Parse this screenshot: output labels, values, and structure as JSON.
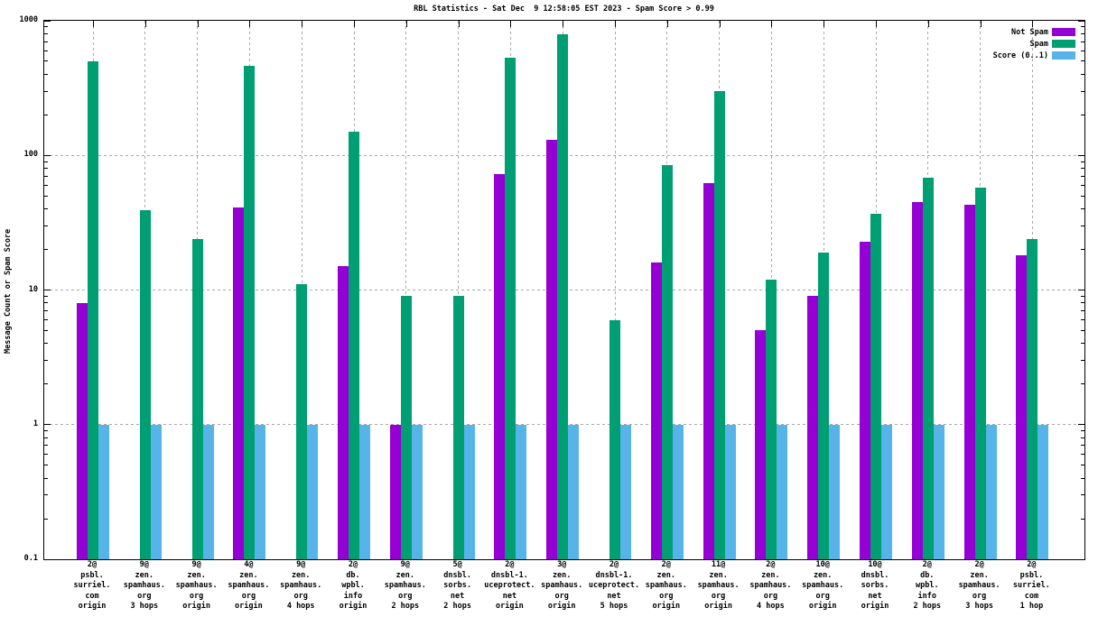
{
  "title": "RBL Statistics - Sat Dec  9 12:58:05 EST 2023 - Spam Score > 0.99",
  "ylabel": "Message Count or Spam Score",
  "colors": {
    "not_spam": "#9400D3",
    "spam": "#009E73",
    "score": "#56B4E9",
    "grid": "#A9A9A9",
    "axis": "#000000",
    "background": "#FFFFFF"
  },
  "chart_data": {
    "type": "bar",
    "title": "RBL Statistics - Sat Dec  9 12:58:05 EST 2023 - Spam Score > 0.99",
    "xlabel": "",
    "ylabel": "Message Count or Spam Score",
    "yscale": "log",
    "ylim": [
      0.1,
      1000
    ],
    "ytick_values": [
      1000,
      100,
      10,
      1,
      0.1
    ],
    "ytick_labels": [
      "1000",
      "100",
      "10",
      "1",
      "0.1"
    ],
    "grid_y_values": [
      100,
      10,
      1
    ],
    "grid_x": "every-category",
    "legend_position": "top-right-inside",
    "legend_entries": [
      "Not Spam",
      "Spam",
      "Score (0..1)"
    ],
    "categories": [
      [
        "2@",
        "psbl.",
        "surriel.",
        "com",
        "origin"
      ],
      [
        "9@",
        "zen.",
        "spamhaus.",
        "org",
        "3 hops"
      ],
      [
        "9@",
        "zen.",
        "spamhaus.",
        "org",
        "origin"
      ],
      [
        "4@",
        "zen.",
        "spamhaus.",
        "org",
        "origin"
      ],
      [
        "9@",
        "zen.",
        "spamhaus.",
        "org",
        "4 hops"
      ],
      [
        "2@",
        "db.",
        "wpbl.",
        "info",
        "origin"
      ],
      [
        "9@",
        "zen.",
        "spamhaus.",
        "org",
        "2 hops"
      ],
      [
        "5@",
        "dnsbl.",
        "sorbs.",
        "net",
        "2 hops"
      ],
      [
        "2@",
        "dnsbl-1.",
        "uceprotect.",
        "net",
        "origin"
      ],
      [
        "3@",
        "zen.",
        "spamhaus.",
        "org",
        "origin"
      ],
      [
        "2@",
        "dnsbl-1.",
        "uceprotect.",
        "net",
        "5 hops"
      ],
      [
        "2@",
        "zen.",
        "spamhaus.",
        "org",
        "origin"
      ],
      [
        "11@",
        "zen.",
        "spamhaus.",
        "org",
        "origin"
      ],
      [
        "2@",
        "zen.",
        "spamhaus.",
        "org",
        "4 hops"
      ],
      [
        "10@",
        "zen.",
        "spamhaus.",
        "org",
        "origin"
      ],
      [
        "10@",
        "dnsbl.",
        "sorbs.",
        "net",
        "origin"
      ],
      [
        "2@",
        "db.",
        "wpbl.",
        "info",
        "2 hops"
      ],
      [
        "2@",
        "zen.",
        "spamhaus.",
        "org",
        "3 hops"
      ],
      [
        "2@",
        "psbl.",
        "surriel.",
        "com",
        "1 hop"
      ]
    ],
    "series": [
      {
        "name": "Not Spam",
        "color_key": "not_spam",
        "values": [
          8,
          null,
          null,
          41,
          null,
          15,
          1,
          null,
          73,
          130,
          null,
          16,
          62,
          5,
          9,
          23,
          45,
          43,
          18
        ]
      },
      {
        "name": "Spam",
        "color_key": "spam",
        "values": [
          500,
          39,
          24,
          460,
          11,
          150,
          9,
          9,
          530,
          790,
          6,
          85,
          300,
          12,
          19,
          37,
          68,
          58,
          24
        ]
      },
      {
        "name": "Score (0..1)",
        "color_key": "score",
        "values": [
          1,
          1,
          1,
          1,
          1,
          1,
          1,
          1,
          1,
          1,
          1,
          1,
          1,
          1,
          1,
          1,
          1,
          1,
          1
        ]
      }
    ]
  }
}
